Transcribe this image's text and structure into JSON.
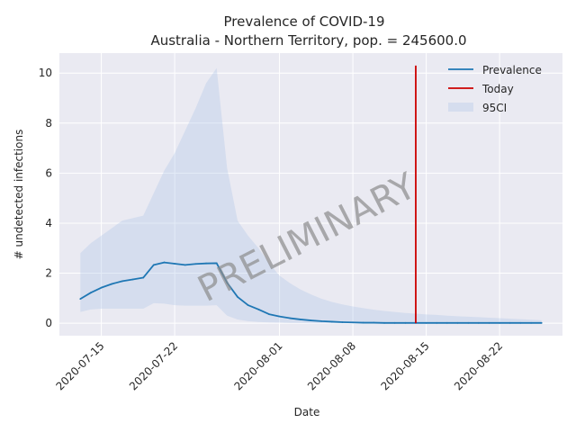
{
  "chart_data": {
    "type": "line",
    "title": "Prevalence of COVID-19",
    "subtitle": "Australia - Northern Territory, pop. = 245600.0",
    "xlabel": "Date",
    "ylabel": "# undetected infections",
    "watermark": "PRELIMINARY",
    "x_start": "2020-07-13",
    "x_tick_labels": [
      "2020-07-15",
      "2020-07-22",
      "2020-08-01",
      "2020-08-08",
      "2020-08-15",
      "2020-08-22"
    ],
    "y_ticks": [
      0,
      2,
      4,
      6,
      8,
      10
    ],
    "xlim": [
      "2020-07-11",
      "2020-08-28"
    ],
    "ylim": [
      -0.5,
      10.8
    ],
    "grid": true,
    "legend_placement": "top-right",
    "x": [
      "2020-07-13",
      "2020-07-14",
      "2020-07-15",
      "2020-07-16",
      "2020-07-17",
      "2020-07-18",
      "2020-07-19",
      "2020-07-20",
      "2020-07-21",
      "2020-07-22",
      "2020-07-23",
      "2020-07-24",
      "2020-07-25",
      "2020-07-26",
      "2020-07-27",
      "2020-07-28",
      "2020-07-29",
      "2020-07-30",
      "2020-07-31",
      "2020-08-01",
      "2020-08-02",
      "2020-08-03",
      "2020-08-04",
      "2020-08-05",
      "2020-08-06",
      "2020-08-07",
      "2020-08-08",
      "2020-08-09",
      "2020-08-10",
      "2020-08-11",
      "2020-08-12",
      "2020-08-13",
      "2020-08-14",
      "2020-08-15",
      "2020-08-16",
      "2020-08-17",
      "2020-08-18",
      "2020-08-19",
      "2020-08-20",
      "2020-08-21",
      "2020-08-22",
      "2020-08-23",
      "2020-08-24",
      "2020-08-25",
      "2020-08-26"
    ],
    "series": [
      {
        "name": "Prevalence",
        "color": "#1f77b4",
        "values": [
          0.97,
          1.22,
          1.42,
          1.57,
          1.68,
          1.75,
          1.82,
          2.33,
          2.43,
          2.38,
          2.33,
          2.37,
          2.39,
          2.4,
          1.62,
          1.05,
          0.72,
          0.55,
          0.36,
          0.27,
          0.2,
          0.15,
          0.11,
          0.08,
          0.06,
          0.04,
          0.03,
          0.02,
          0.02,
          0.01,
          0.01,
          0.01,
          0.01,
          0.01,
          0.01,
          0.01,
          0.01,
          0.01,
          0.01,
          0.01,
          0.01,
          0.01,
          0.01,
          0.01,
          0.01
        ]
      }
    ],
    "band": {
      "name": "95CI",
      "color": "#aec7e8",
      "upper": [
        2.8,
        3.2,
        3.5,
        3.8,
        4.1,
        4.2,
        4.3,
        5.2,
        6.1,
        6.8,
        7.7,
        8.6,
        9.6,
        10.2,
        6.2,
        4.1,
        3.5,
        3.0,
        2.4,
        1.9,
        1.6,
        1.35,
        1.15,
        0.98,
        0.85,
        0.75,
        0.67,
        0.6,
        0.54,
        0.49,
        0.45,
        0.41,
        0.38,
        0.35,
        0.33,
        0.3,
        0.28,
        0.26,
        0.24,
        0.22,
        0.2,
        0.18,
        0.16,
        0.14,
        0.12
      ],
      "lower": [
        0.45,
        0.55,
        0.58,
        0.58,
        0.58,
        0.58,
        0.58,
        0.8,
        0.78,
        0.72,
        0.7,
        0.7,
        0.7,
        0.72,
        0.3,
        0.15,
        0.08,
        0.05,
        0.03,
        0.02,
        0.01,
        0.01,
        0.0,
        0.0,
        0.0,
        0.0,
        0.0,
        0.0,
        0.0,
        0.0,
        0.0,
        0.0,
        0.0,
        0.0,
        0.0,
        0.0,
        0.0,
        0.0,
        0.0,
        0.0,
        0.0,
        0.0,
        0.0,
        0.0,
        0.0
      ]
    },
    "today": {
      "name": "Today",
      "color": "#cc0000",
      "date": "2020-08-14",
      "y_range": [
        0,
        10.3
      ]
    }
  }
}
